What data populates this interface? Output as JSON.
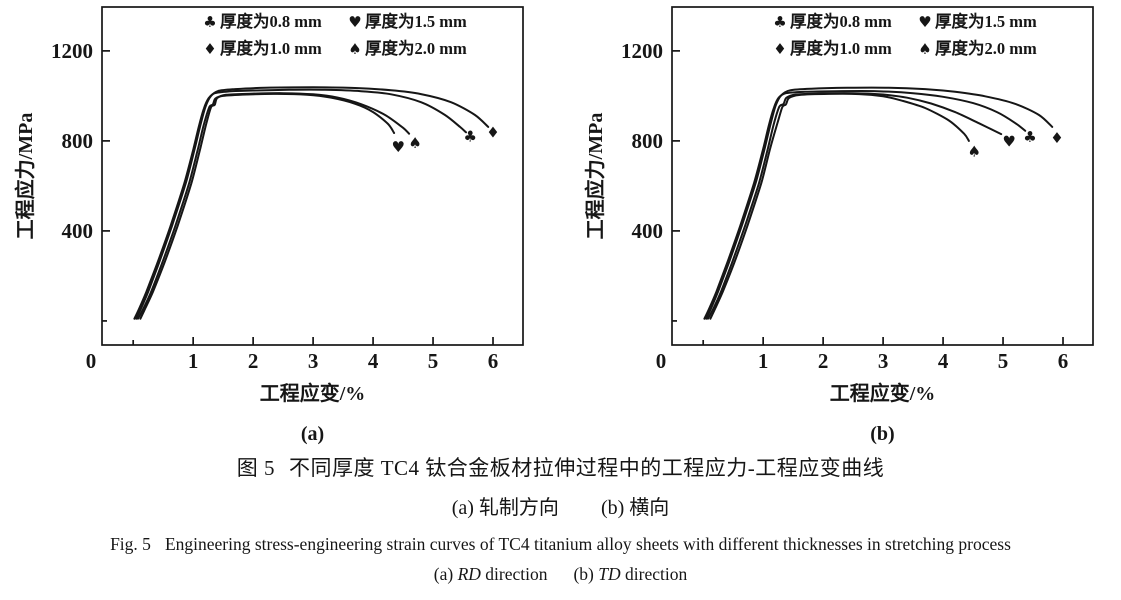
{
  "colors": {
    "ink": "#161616",
    "background": "#ffffff"
  },
  "figure": {
    "caption_cn1_figno": "图 5",
    "caption_cn1_text": "不同厚度 TC4 钛合金板材拉伸过程中的工程应力-工程应变曲线",
    "caption_cn2": {
      "a_paren": "(a)",
      "a_text": "轧制方向",
      "b_paren": "(b)",
      "b_text": "横向"
    },
    "caption_en1_figno": "Fig. 5",
    "caption_en1_text": "Engineering stress-engineering strain curves of TC4 titanium alloy sheets with different thicknesses in stretching process",
    "caption_en2": {
      "a_paren": "(a)",
      "rd": "RD",
      "dir1": "direction",
      "b_paren": "(b)",
      "td": "TD",
      "dir2": "direction"
    }
  },
  "chart_data": [
    {
      "type": "line",
      "panel_label": "(a)",
      "xlabel": "工程应变/%",
      "ylabel": "工程应力/MPa",
      "xlim": [
        -0.52,
        6.5
      ],
      "ylim": [
        -107,
        1395
      ],
      "xticks": [
        0,
        1,
        2,
        3,
        4,
        5,
        6
      ],
      "xtick_labels": [
        "0",
        "1",
        "2",
        "3",
        "4",
        "5",
        "6"
      ],
      "yticks": [
        0,
        400,
        800,
        1200
      ],
      "ytick_labels": [
        "",
        "400",
        "800",
        "1200"
      ],
      "grid": false,
      "legend": {
        "position": "top-inside",
        "items": [
          {
            "marker": "♣",
            "label": "厚度为0.8 mm"
          },
          {
            "marker": "♥",
            "label": "厚度为1.5 mm"
          },
          {
            "marker": "♦",
            "label": "厚度为1.0 mm"
          },
          {
            "marker": "♠",
            "label": "厚度为2.0 mm"
          }
        ]
      },
      "series": [
        {
          "name": "0.8 mm",
          "marker": "♣",
          "end_marker": [
            5.62,
            820
          ],
          "points": [
            [
              0.02,
              10
            ],
            [
              0.1,
              55
            ],
            [
              0.22,
              130
            ],
            [
              0.4,
              255
            ],
            [
              0.62,
              420
            ],
            [
              0.85,
              610
            ],
            [
              1.0,
              760
            ],
            [
              1.1,
              870
            ],
            [
              1.18,
              945
            ],
            [
              1.26,
              990
            ],
            [
              1.36,
              1012
            ],
            [
              1.6,
              1020
            ],
            [
              2.0,
              1024
            ],
            [
              2.6,
              1027
            ],
            [
              3.2,
              1027
            ],
            [
              3.8,
              1021
            ],
            [
              4.3,
              1007
            ],
            [
              4.8,
              972
            ],
            [
              5.2,
              915
            ],
            [
              5.45,
              862
            ],
            [
              5.55,
              838
            ]
          ]
        },
        {
          "name": "1.0 mm",
          "marker": "♦",
          "end_marker": [
            6.0,
            838
          ],
          "points": [
            [
              0.05,
              10
            ],
            [
              0.13,
              55
            ],
            [
              0.25,
              130
            ],
            [
              0.43,
              258
            ],
            [
              0.65,
              425
            ],
            [
              0.88,
              615
            ],
            [
              1.03,
              770
            ],
            [
              1.13,
              880
            ],
            [
              1.21,
              955
            ],
            [
              1.3,
              1000
            ],
            [
              1.42,
              1022
            ],
            [
              1.7,
              1030
            ],
            [
              2.2,
              1036
            ],
            [
              3.0,
              1038
            ],
            [
              3.7,
              1035
            ],
            [
              4.3,
              1025
            ],
            [
              4.8,
              1008
            ],
            [
              5.3,
              972
            ],
            [
              5.7,
              915
            ],
            [
              5.92,
              862
            ]
          ]
        },
        {
          "name": "1.5 mm",
          "marker": "♥",
          "end_marker": [
            4.42,
            772
          ],
          "points": [
            [
              0.08,
              10
            ],
            [
              0.17,
              55
            ],
            [
              0.3,
              130
            ],
            [
              0.48,
              255
            ],
            [
              0.7,
              420
            ],
            [
              0.93,
              610
            ],
            [
              1.08,
              765
            ],
            [
              1.18,
              875
            ],
            [
              1.27,
              950
            ],
            [
              1.33,
              962
            ],
            [
              1.37,
              988
            ],
            [
              1.5,
              1000
            ],
            [
              1.9,
              1006
            ],
            [
              2.4,
              1009
            ],
            [
              2.9,
              1005
            ],
            [
              3.3,
              992
            ],
            [
              3.7,
              965
            ],
            [
              4.0,
              928
            ],
            [
              4.25,
              875
            ],
            [
              4.35,
              835
            ]
          ]
        },
        {
          "name": "2.0 mm",
          "marker": "♠",
          "end_marker": [
            4.7,
            790
          ],
          "points": [
            [
              0.12,
              10
            ],
            [
              0.2,
              55
            ],
            [
              0.33,
              130
            ],
            [
              0.52,
              258
            ],
            [
              0.74,
              422
            ],
            [
              0.97,
              612
            ],
            [
              1.12,
              768
            ],
            [
              1.22,
              878
            ],
            [
              1.3,
              950
            ],
            [
              1.36,
              960
            ],
            [
              1.4,
              990
            ],
            [
              1.55,
              1005
            ],
            [
              2.0,
              1010
            ],
            [
              2.5,
              1012
            ],
            [
              3.0,
              1007
            ],
            [
              3.4,
              993
            ],
            [
              3.8,
              963
            ],
            [
              4.2,
              915
            ],
            [
              4.5,
              858
            ],
            [
              4.6,
              832
            ]
          ]
        }
      ]
    },
    {
      "type": "line",
      "panel_label": "(b)",
      "xlabel": "工程应变/%",
      "ylabel": "工程应力/MPa",
      "xlim": [
        -0.52,
        6.5
      ],
      "ylim": [
        -107,
        1395
      ],
      "xticks": [
        0,
        1,
        2,
        3,
        4,
        5,
        6
      ],
      "xtick_labels": [
        "0",
        "1",
        "2",
        "3",
        "4",
        "5",
        "6"
      ],
      "yticks": [
        0,
        400,
        800,
        1200
      ],
      "ytick_labels": [
        "",
        "400",
        "800",
        "1200"
      ],
      "grid": false,
      "legend": {
        "position": "top-inside",
        "items": [
          {
            "marker": "♣",
            "label": "厚度为0.8 mm"
          },
          {
            "marker": "♥",
            "label": "厚度为1.5 mm"
          },
          {
            "marker": "♦",
            "label": "厚度为1.0 mm"
          },
          {
            "marker": "♠",
            "label": "厚度为2.0 mm"
          }
        ]
      },
      "series": [
        {
          "name": "0.8 mm",
          "marker": "♣",
          "end_marker": [
            5.45,
            817
          ],
          "points": [
            [
              0.02,
              10
            ],
            [
              0.1,
              55
            ],
            [
              0.22,
              130
            ],
            [
              0.4,
              258
            ],
            [
              0.62,
              425
            ],
            [
              0.85,
              615
            ],
            [
              1.0,
              765
            ],
            [
              1.1,
              875
            ],
            [
              1.18,
              948
            ],
            [
              1.26,
              992
            ],
            [
              1.38,
              1012
            ],
            [
              1.7,
              1018
            ],
            [
              2.2,
              1021
            ],
            [
              2.9,
              1021
            ],
            [
              3.5,
              1012
            ],
            [
              4.0,
              996
            ],
            [
              4.5,
              968
            ],
            [
              4.9,
              928
            ],
            [
              5.2,
              880
            ],
            [
              5.37,
              845
            ]
          ]
        },
        {
          "name": "1.0 mm",
          "marker": "♦",
          "end_marker": [
            5.9,
            812
          ],
          "points": [
            [
              0.05,
              10
            ],
            [
              0.13,
              55
            ],
            [
              0.25,
              132
            ],
            [
              0.43,
              260
            ],
            [
              0.65,
              428
            ],
            [
              0.88,
              618
            ],
            [
              1.03,
              772
            ],
            [
              1.13,
              882
            ],
            [
              1.21,
              958
            ],
            [
              1.3,
              1002
            ],
            [
              1.45,
              1025
            ],
            [
              1.8,
              1032
            ],
            [
              2.4,
              1036
            ],
            [
              3.1,
              1036
            ],
            [
              3.7,
              1030
            ],
            [
              4.2,
              1018
            ],
            [
              4.7,
              998
            ],
            [
              5.2,
              965
            ],
            [
              5.6,
              915
            ],
            [
              5.82,
              862
            ]
          ]
        },
        {
          "name": "1.5 mm",
          "marker": "♥",
          "end_marker": [
            5.1,
            797
          ],
          "points": [
            [
              0.08,
              10
            ],
            [
              0.17,
              55
            ],
            [
              0.3,
              132
            ],
            [
              0.48,
              258
            ],
            [
              0.7,
              424
            ],
            [
              0.93,
              612
            ],
            [
              1.08,
              768
            ],
            [
              1.18,
              878
            ],
            [
              1.27,
              952
            ],
            [
              1.34,
              964
            ],
            [
              1.39,
              992
            ],
            [
              1.55,
              1006
            ],
            [
              2.0,
              1011
            ],
            [
              2.5,
              1012
            ],
            [
              3.0,
              1006
            ],
            [
              3.4,
              992
            ],
            [
              3.8,
              966
            ],
            [
              4.2,
              928
            ],
            [
              4.6,
              878
            ],
            [
              4.97,
              830
            ]
          ]
        },
        {
          "name": "2.0 mm",
          "marker": "♠",
          "end_marker": [
            4.52,
            752
          ],
          "points": [
            [
              0.12,
              10
            ],
            [
              0.2,
              55
            ],
            [
              0.33,
              132
            ],
            [
              0.52,
              260
            ],
            [
              0.74,
              425
            ],
            [
              0.97,
              614
            ],
            [
              1.12,
              770
            ],
            [
              1.24,
              880
            ],
            [
              1.32,
              950
            ],
            [
              1.38,
              962
            ],
            [
              1.43,
              990
            ],
            [
              1.6,
              1004
            ],
            [
              2.1,
              1009
            ],
            [
              2.6,
              1008
            ],
            [
              3.0,
              998
            ],
            [
              3.3,
              980
            ],
            [
              3.7,
              946
            ],
            [
              4.1,
              890
            ],
            [
              4.35,
              832
            ],
            [
              4.43,
              800
            ]
          ]
        }
      ]
    }
  ]
}
